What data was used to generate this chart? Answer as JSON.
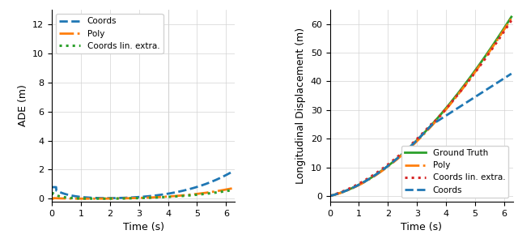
{
  "left": {
    "xlabel": "Time (s)",
    "ylabel": "ADE (m)",
    "xlim": [
      0,
      6.3
    ],
    "ylim": [
      -0.2,
      13
    ],
    "yticks": [
      0,
      2,
      4,
      6,
      8,
      10,
      12
    ],
    "xticks": [
      0,
      1,
      2,
      3,
      4,
      5,
      6
    ],
    "vline_x": 4.0,
    "legend": [
      {
        "label": "Coords",
        "color": "#1f77b4",
        "linestyle": "--",
        "linewidth": 2.0
      },
      {
        "label": "Poly",
        "color": "#ff7f0e",
        "linestyle": "-.",
        "linewidth": 2.0
      },
      {
        "label": "Coords lin. extra.",
        "color": "#2ca02c",
        "linestyle": ":",
        "linewidth": 2.2
      }
    ]
  },
  "right": {
    "xlabel": "Time (s)",
    "ylabel": "Longitudinal Displacement (m)",
    "xlim": [
      0,
      6.3
    ],
    "ylim": [
      -2,
      65
    ],
    "yticks": [
      0,
      10,
      20,
      30,
      40,
      50,
      60
    ],
    "xticks": [
      0,
      1,
      2,
      3,
      4,
      5,
      6
    ],
    "legend": [
      {
        "label": "Coords",
        "color": "#1f77b4",
        "linestyle": "--",
        "linewidth": 2.0
      },
      {
        "label": "Poly",
        "color": "#ff7f0e",
        "linestyle": "-.",
        "linewidth": 2.0
      },
      {
        "label": "Ground Truth",
        "color": "#2ca02c",
        "linestyle": "-",
        "linewidth": 2.0
      },
      {
        "label": "Coords lin. extra.",
        "color": "#d62728",
        "linestyle": ":",
        "linewidth": 2.2
      }
    ]
  }
}
